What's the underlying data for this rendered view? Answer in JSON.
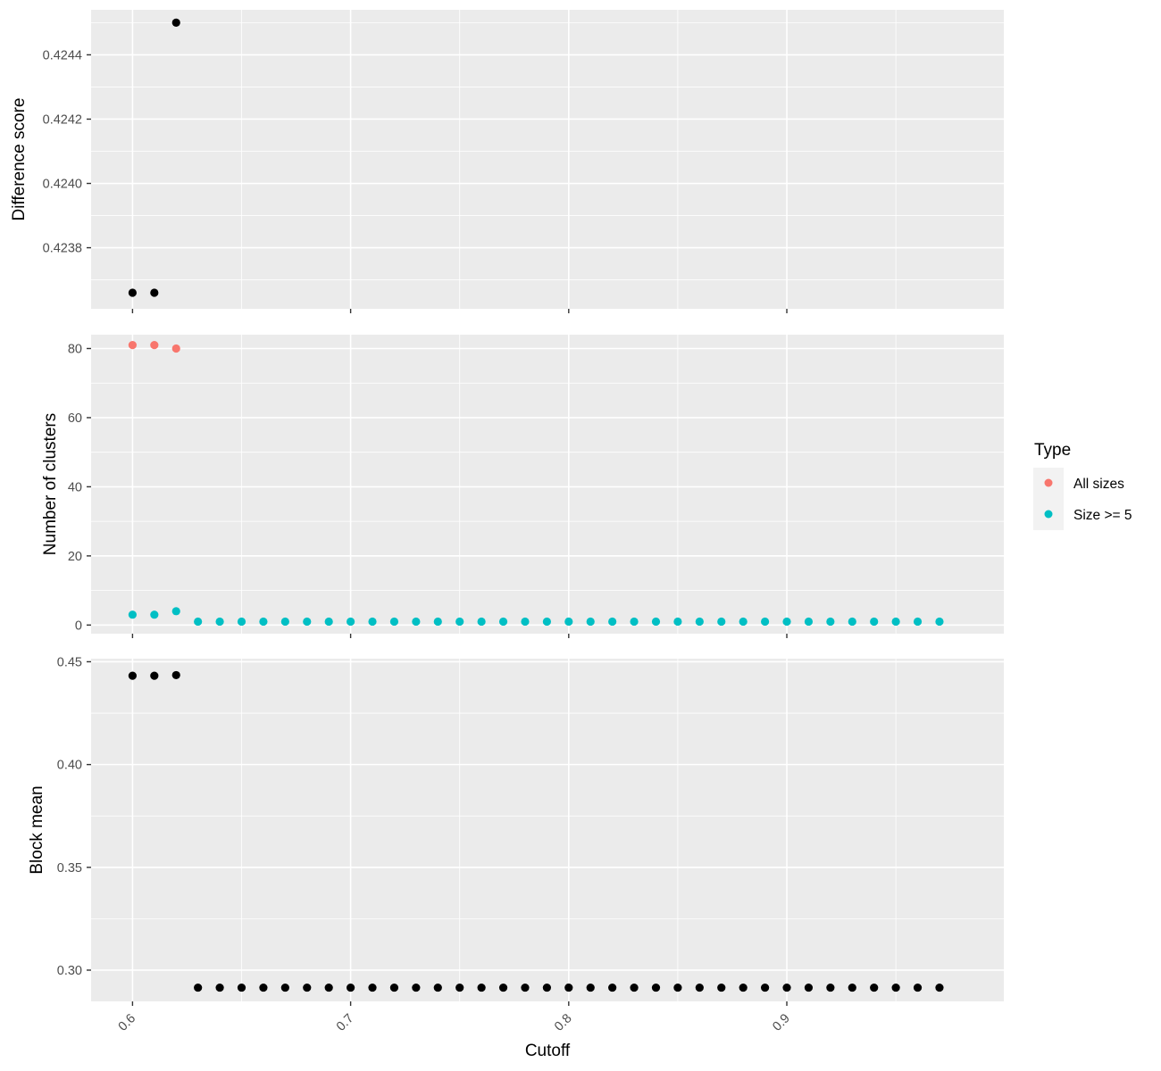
{
  "chart_data": {
    "type": "scatter",
    "xlabel": "Cutoff",
    "x_ticks": [
      "0.6",
      "0.7",
      "0.8",
      "0.9"
    ],
    "x_tick_values": [
      0.6,
      0.7,
      0.8,
      0.9
    ],
    "xlim": [
      0.581,
      0.9995
    ],
    "grid": true,
    "legend": {
      "title": "Type",
      "placement": "right",
      "entries": [
        {
          "label": "All sizes",
          "color": "#F8766D"
        },
        {
          "label": "Size >= 5",
          "color": "#00BFC4"
        }
      ]
    },
    "panels": [
      {
        "id": "difference",
        "ylabel": "Difference score",
        "ylim": [
          0.42361,
          0.42454
        ],
        "y_ticks": [
          "0.4238",
          "0.4240",
          "0.4242",
          "0.4244"
        ],
        "y_tick_values": [
          0.4238,
          0.424,
          0.4242,
          0.4244
        ],
        "series": [
          {
            "color": "#000000",
            "points": [
              [
                0.6,
                0.42366
              ],
              [
                0.61,
                0.42366
              ],
              [
                0.62,
                0.4245
              ]
            ]
          }
        ]
      },
      {
        "id": "clusters",
        "ylabel": "Number of clusters",
        "ylim": [
          -2.5,
          84
        ],
        "y_ticks": [
          "0",
          "20",
          "40",
          "60",
          "80"
        ],
        "y_tick_values": [
          0,
          20,
          40,
          60,
          80
        ],
        "series": [
          {
            "name": "All sizes",
            "color": "#F8766D",
            "points": [
              [
                0.6,
                81
              ],
              [
                0.61,
                81
              ],
              [
                0.62,
                80
              ]
            ]
          },
          {
            "name": "Size >= 5",
            "color": "#00BFC4",
            "x_start": 0.6,
            "x_end": 0.97,
            "x_step": 0.01,
            "y_head": [
              3,
              3,
              4
            ],
            "y_rest": 1
          }
        ]
      },
      {
        "id": "blockmean",
        "ylabel": "Block mean",
        "ylim": [
          0.2848,
          0.4515
        ],
        "y_ticks": [
          "0.30",
          "0.35",
          "0.40",
          "0.45"
        ],
        "y_tick_values": [
          0.3,
          0.35,
          0.4,
          0.45
        ],
        "series": [
          {
            "color": "#000000",
            "x_start": 0.6,
            "x_end": 0.97,
            "x_step": 0.01,
            "y_head": [
              0.4432,
              0.4432,
              0.4435
            ],
            "y_rest": 0.2915
          }
        ]
      }
    ]
  }
}
